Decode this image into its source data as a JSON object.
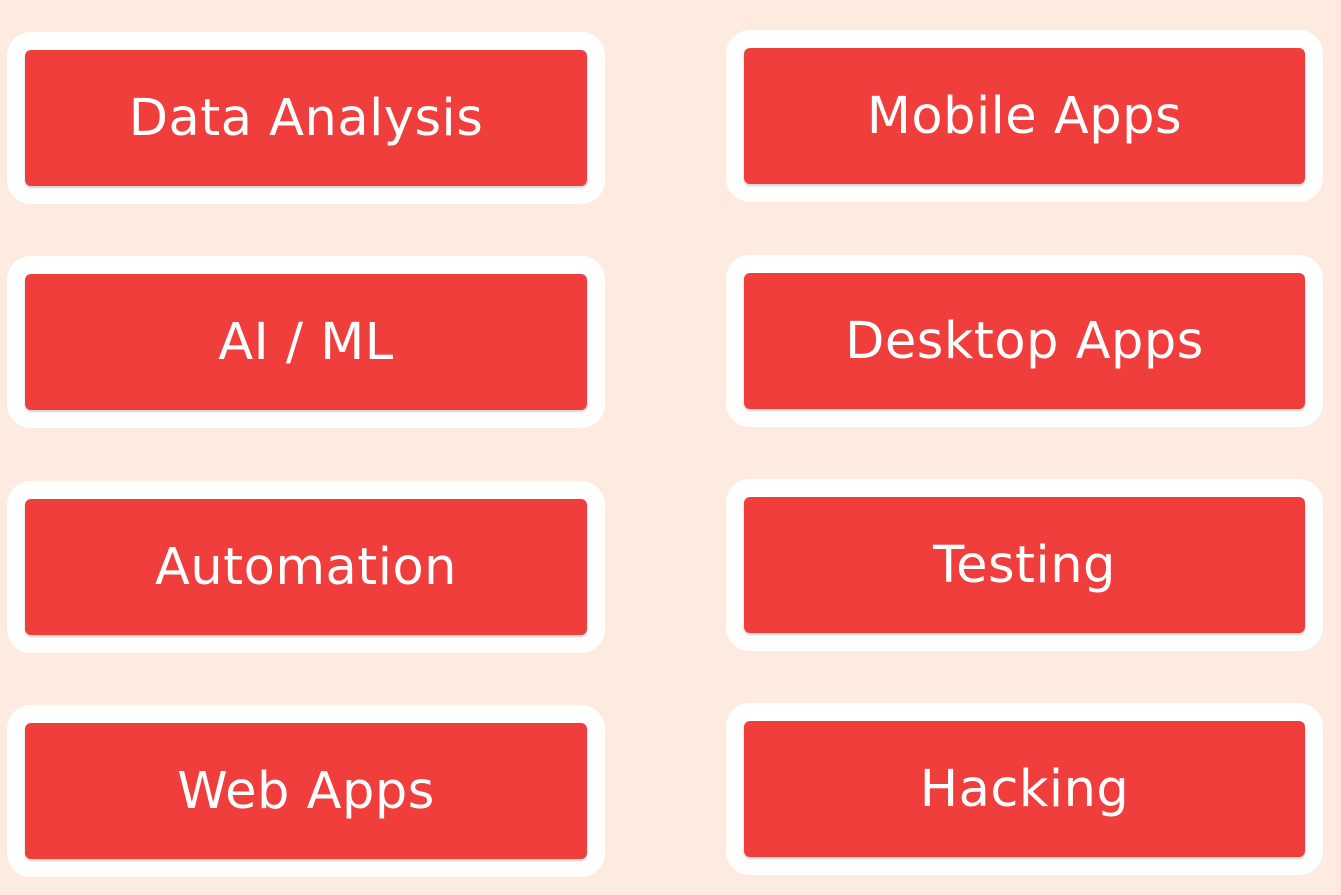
{
  "background_color": "#fdebe0",
  "accent_color": "#ef3e3c",
  "tiles": [
    {
      "label": "Data Analysis"
    },
    {
      "label": "Mobile Apps"
    },
    {
      "label": "AI / ML"
    },
    {
      "label": "Desktop Apps"
    },
    {
      "label": "Automation"
    },
    {
      "label": "Testing"
    },
    {
      "label": "Web Apps"
    },
    {
      "label": "Hacking"
    }
  ]
}
